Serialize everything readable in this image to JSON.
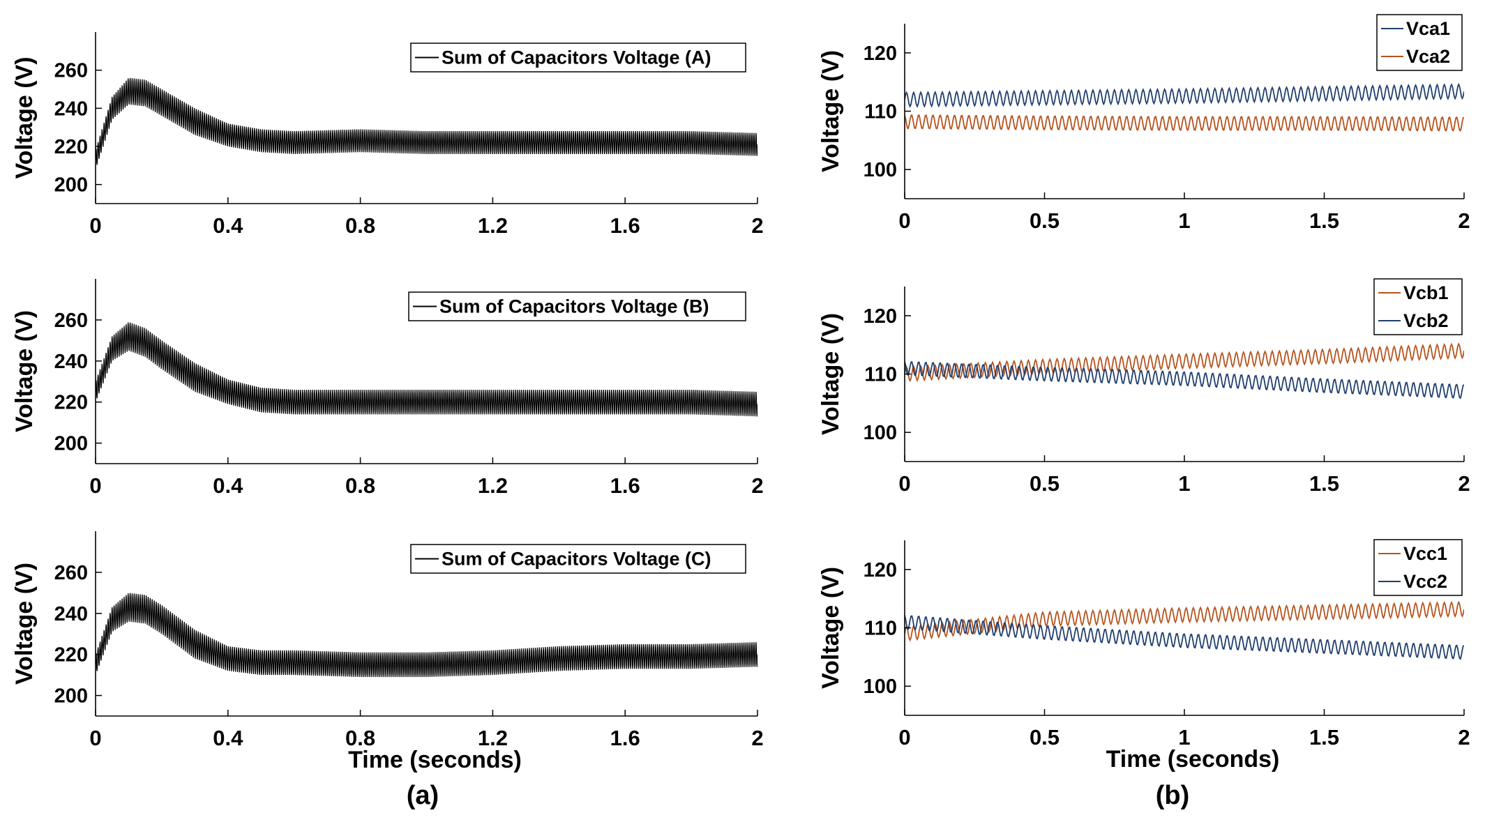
{
  "figure": {
    "panel_labels": [
      "(a)",
      "(b)"
    ],
    "colors": {
      "sum": "#000000",
      "blue": "#1f3e6e",
      "orange": "#b5531d"
    }
  },
  "chart_data": [
    {
      "id": "a1",
      "type": "line",
      "oscillating": true,
      "xlim": [
        0,
        2
      ],
      "ylim": [
        190,
        280
      ],
      "xticks": [
        0,
        0.4,
        0.8,
        1.2,
        1.6,
        2
      ],
      "xtick_labels": [
        "0",
        "0.4",
        "0.8",
        "1.2",
        "1.6",
        "2"
      ],
      "yticks": [
        200,
        220,
        240,
        260
      ],
      "ytick_labels": [
        "200",
        "220",
        "240",
        "260"
      ],
      "xlabel": "",
      "ylabel": "Voltage (V)",
      "legend_position": "top-right",
      "series": [
        {
          "name": "Sum of Capacitors Voltage (A)",
          "color": "#000000",
          "envelope_x": [
            0,
            0.05,
            0.1,
            0.15,
            0.2,
            0.3,
            0.4,
            0.5,
            0.6,
            0.8,
            1.0,
            1.2,
            1.4,
            1.6,
            1.8,
            2.0
          ],
          "mean": [
            213,
            240,
            249,
            248,
            243,
            233,
            226,
            223,
            222,
            223,
            222,
            222,
            222,
            222,
            222,
            221
          ],
          "amplitude": [
            5,
            6,
            7,
            7,
            7,
            7,
            6,
            6,
            6,
            6,
            6,
            6,
            6,
            6,
            6,
            6
          ]
        }
      ]
    },
    {
      "id": "a2",
      "type": "line",
      "oscillating": true,
      "xlim": [
        0,
        2
      ],
      "ylim": [
        190,
        280
      ],
      "xticks": [
        0,
        0.4,
        0.8,
        1.2,
        1.6,
        2
      ],
      "xtick_labels": [
        "0",
        "0.4",
        "0.8",
        "1.2",
        "1.6",
        "2"
      ],
      "yticks": [
        200,
        220,
        240,
        260
      ],
      "ytick_labels": [
        "200",
        "220",
        "240",
        "260"
      ],
      "xlabel": "",
      "ylabel": "Voltage (V)",
      "legend_position": "top-right",
      "series": [
        {
          "name": "Sum of Capacitors Voltage (B)",
          "color": "#000000",
          "envelope_x": [
            0,
            0.05,
            0.1,
            0.15,
            0.2,
            0.3,
            0.4,
            0.5,
            0.6,
            0.8,
            1.0,
            1.2,
            1.4,
            1.6,
            1.8,
            2.0
          ],
          "mean": [
            225,
            246,
            252,
            249,
            243,
            232,
            225,
            221,
            220,
            220,
            220,
            220,
            220,
            220,
            220,
            219
          ],
          "amplitude": [
            5,
            6,
            7,
            7,
            7,
            7,
            6,
            6,
            6,
            6,
            6,
            6,
            6,
            6,
            6,
            6
          ]
        }
      ]
    },
    {
      "id": "a3",
      "type": "line",
      "oscillating": true,
      "xlim": [
        0,
        2
      ],
      "ylim": [
        190,
        280
      ],
      "xticks": [
        0,
        0.4,
        0.8,
        1.2,
        1.6,
        2
      ],
      "xtick_labels": [
        "0",
        "0.4",
        "0.8",
        "1.2",
        "1.6",
        "2"
      ],
      "yticks": [
        200,
        220,
        240,
        260
      ],
      "ytick_labels": [
        "200",
        "220",
        "240",
        "260"
      ],
      "xlabel": "Time (seconds)",
      "ylabel": "Voltage (V)",
      "legend_position": "top-right",
      "series": [
        {
          "name": "Sum of Capacitors Voltage (C)",
          "color": "#000000",
          "envelope_x": [
            0,
            0.05,
            0.1,
            0.15,
            0.2,
            0.3,
            0.4,
            0.5,
            0.6,
            0.8,
            1.0,
            1.2,
            1.4,
            1.6,
            1.8,
            2.0
          ],
          "mean": [
            215,
            237,
            243,
            242,
            237,
            225,
            218,
            216,
            216,
            215,
            215,
            216,
            218,
            219,
            219,
            220
          ],
          "amplitude": [
            5,
            6,
            7,
            7,
            7,
            7,
            6,
            6,
            6,
            6,
            6,
            6,
            6,
            6,
            6,
            6
          ]
        }
      ]
    },
    {
      "id": "b1",
      "type": "line",
      "oscillating": true,
      "xlim": [
        0,
        2
      ],
      "ylim": [
        95,
        125
      ],
      "xticks": [
        0,
        0.5,
        1,
        1.5,
        2
      ],
      "xtick_labels": [
        "0",
        "0.5",
        "1",
        "1.5",
        "2"
      ],
      "yticks": [
        100,
        110,
        120
      ],
      "ytick_labels": [
        "100",
        "110",
        "120"
      ],
      "xlabel": "",
      "ylabel": "Voltage (V)",
      "legend_position": "top-right",
      "series": [
        {
          "name": "Vca1",
          "color": "#1f3e6e",
          "envelope_x": [
            0,
            0.5,
            1,
            1.5,
            2
          ],
          "mean": [
            112,
            112.3,
            112.6,
            113,
            113.4
          ],
          "amplitude": [
            1.2,
            1.2,
            1.2,
            1.2,
            1.2
          ]
        },
        {
          "name": "Vca2",
          "color": "#b5531d",
          "envelope_x": [
            0,
            0.5,
            1,
            1.5,
            2
          ],
          "mean": [
            108.2,
            108,
            107.9,
            107.9,
            107.8
          ],
          "amplitude": [
            1.2,
            1.2,
            1.2,
            1.2,
            1.2
          ]
        }
      ]
    },
    {
      "id": "b2",
      "type": "line",
      "oscillating": true,
      "xlim": [
        0,
        2
      ],
      "ylim": [
        95,
        125
      ],
      "xticks": [
        0,
        0.5,
        1,
        1.5,
        2
      ],
      "xtick_labels": [
        "0",
        "0.5",
        "1",
        "1.5",
        "2"
      ],
      "yticks": [
        100,
        110,
        120
      ],
      "ytick_labels": [
        "100",
        "110",
        "120"
      ],
      "xlabel": "",
      "ylabel": "Voltage (V)",
      "legend_position": "top-right",
      "series": [
        {
          "name": "Vcb1",
          "color": "#b5531d",
          "envelope_x": [
            0,
            0.5,
            1,
            1.5,
            2
          ],
          "mean": [
            110,
            111.3,
            112.2,
            113,
            114
          ],
          "amplitude": [
            1.2,
            1.2,
            1.2,
            1.2,
            1.2
          ]
        },
        {
          "name": "Vcb2",
          "color": "#1f3e6e",
          "envelope_x": [
            0,
            0.5,
            1,
            1.5,
            2
          ],
          "mean": [
            111,
            110,
            109.2,
            108,
            107
          ],
          "amplitude": [
            1.2,
            1.2,
            1.2,
            1.2,
            1.2
          ]
        }
      ]
    },
    {
      "id": "b3",
      "type": "line",
      "oscillating": true,
      "xlim": [
        0,
        2
      ],
      "ylim": [
        95,
        125
      ],
      "xticks": [
        0,
        0.5,
        1,
        1.5,
        2
      ],
      "xtick_labels": [
        "0",
        "0.5",
        "1",
        "1.5",
        "2"
      ],
      "yticks": [
        100,
        110,
        120
      ],
      "ytick_labels": [
        "100",
        "110",
        "120"
      ],
      "xlabel": "Time (seconds)",
      "ylabel": "Voltage (V)",
      "legend_position": "top-right",
      "series": [
        {
          "name": "Vcc1",
          "color": "#b5531d",
          "envelope_x": [
            0,
            0.5,
            1,
            1.5,
            2
          ],
          "mean": [
            109,
            111.5,
            112.2,
            112.7,
            113.2
          ],
          "amplitude": [
            1.2,
            1.2,
            1.2,
            1.2,
            1.2
          ]
        },
        {
          "name": "Vcc2",
          "color": "#1f3e6e",
          "envelope_x": [
            0,
            0.5,
            1,
            1.5,
            2
          ],
          "mean": [
            111,
            109.2,
            107.8,
            106.8,
            105.8
          ],
          "amplitude": [
            1.2,
            1.2,
            1.2,
            1.2,
            1.2
          ]
        }
      ]
    }
  ]
}
